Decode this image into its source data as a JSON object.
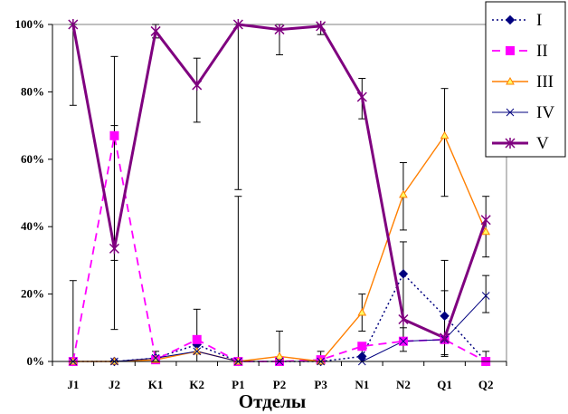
{
  "chart_data": {
    "type": "line",
    "xlabel": "Отделы",
    "ylabel": "",
    "ylim": [
      0,
      100
    ],
    "yticks": [
      "0%",
      "20%",
      "40%",
      "60%",
      "80%",
      "100%"
    ],
    "ytick_values": [
      0,
      20,
      40,
      60,
      80,
      100
    ],
    "categories": [
      "J1",
      "J2",
      "K1",
      "K2",
      "P1",
      "P2",
      "P3",
      "N1",
      "N2",
      "Q1",
      "Q2"
    ],
    "grid": "none",
    "legend_position": "right",
    "series": [
      {
        "name": "I",
        "color": "#00007f",
        "line_style": "dotted",
        "marker": "diamond",
        "values": [
          0,
          0,
          1,
          5,
          0,
          0,
          0,
          1.5,
          26,
          13.5,
          0
        ]
      },
      {
        "name": "II",
        "color": "#ff00ff",
        "line_style": "dashed",
        "marker": "square",
        "values": [
          0,
          67,
          0.5,
          6.5,
          0,
          0,
          0.5,
          4.5,
          6,
          6.5,
          0
        ]
      },
      {
        "name": "III",
        "color": "#ff7f00",
        "line_style": "solid",
        "marker": "triangle",
        "values": [
          0,
          0,
          0.5,
          3,
          0,
          1.5,
          0,
          14.5,
          49.5,
          67,
          38.5
        ]
      },
      {
        "name": "IV",
        "color": "#00007f",
        "line_style": "solid-thin",
        "marker": "x",
        "values": [
          0,
          0,
          1,
          3,
          0,
          0,
          0,
          0,
          6,
          6.5,
          19.5
        ]
      },
      {
        "name": "V",
        "color": "#7f007f",
        "line_style": "solid-thick",
        "marker": "star",
        "values": [
          100,
          33.5,
          98,
          82,
          100,
          98.5,
          99.5,
          78.5,
          12.5,
          7,
          42
        ]
      }
    ],
    "error_bars": [
      {
        "category": "J1",
        "low": 0,
        "high": 24
      },
      {
        "category": "J1",
        "low": 76,
        "high": 100
      },
      {
        "category": "J2",
        "low": 9.5,
        "high": 90.5
      },
      {
        "category": "J2",
        "low": 30,
        "high": 70
      },
      {
        "category": "K1",
        "low": 0,
        "high": 3
      },
      {
        "category": "K1",
        "low": 96,
        "high": 100
      },
      {
        "category": "K2",
        "low": 0,
        "high": 15.5
      },
      {
        "category": "K2",
        "low": 71,
        "high": 90
      },
      {
        "category": "P1",
        "low": 0,
        "high": 49
      },
      {
        "category": "P1",
        "low": 51,
        "high": 100
      },
      {
        "category": "P2",
        "low": 0,
        "high": 9
      },
      {
        "category": "P2",
        "low": 91,
        "high": 100
      },
      {
        "category": "P3",
        "low": 0,
        "high": 3
      },
      {
        "category": "P3",
        "low": 97,
        "high": 100
      },
      {
        "category": "N1",
        "low": 0,
        "high": 5
      },
      {
        "category": "N1",
        "low": 9,
        "high": 20
      },
      {
        "category": "N1",
        "low": 72,
        "high": 84
      },
      {
        "category": "N2",
        "low": 3,
        "high": 10
      },
      {
        "category": "N2",
        "low": 6.5,
        "high": 35.5
      },
      {
        "category": "N2",
        "low": 39,
        "high": 59
      },
      {
        "category": "Q1",
        "low": 2,
        "high": 21
      },
      {
        "category": "Q1",
        "low": 1.5,
        "high": 30
      },
      {
        "category": "Q1",
        "low": 49,
        "high": 81
      },
      {
        "category": "Q2",
        "low": 0,
        "high": 3
      },
      {
        "category": "Q2",
        "low": 14.5,
        "high": 25.5
      },
      {
        "category": "Q2",
        "low": 31,
        "high": 49
      }
    ]
  }
}
